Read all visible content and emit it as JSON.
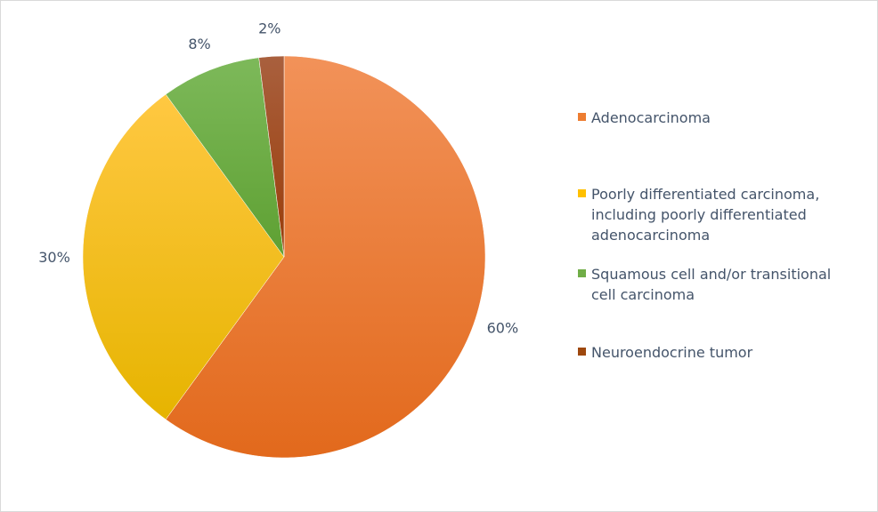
{
  "chart_data": {
    "type": "pie",
    "title": "",
    "start_angle_deg": 0,
    "direction": "clockwise",
    "legend_position": "right",
    "slices": [
      {
        "name": "Adenocarcinoma",
        "value": 60,
        "label": "60%",
        "color": "#ED7D31",
        "color_light": "#F29259",
        "color_dark": "#E2691C"
      },
      {
        "name": "Poorly differentiated carcinoma, including poorly differentiated adenocarcinoma",
        "value": 30,
        "label": "30%",
        "color": "#FFC000",
        "color_light": "#FFC842",
        "color_dark": "#E6B400"
      },
      {
        "name": "Squamous cell and/or transitional cell carcinoma",
        "value": 8,
        "label": "8%",
        "color": "#70AD47",
        "color_light": "#7DB95A",
        "color_dark": "#5EA032"
      },
      {
        "name": "Neuroendocrine tumor",
        "value": 2,
        "label": "2%",
        "color": "#9E480E",
        "color_light": "#A9603E",
        "color_dark": "#9A3C08"
      }
    ]
  }
}
